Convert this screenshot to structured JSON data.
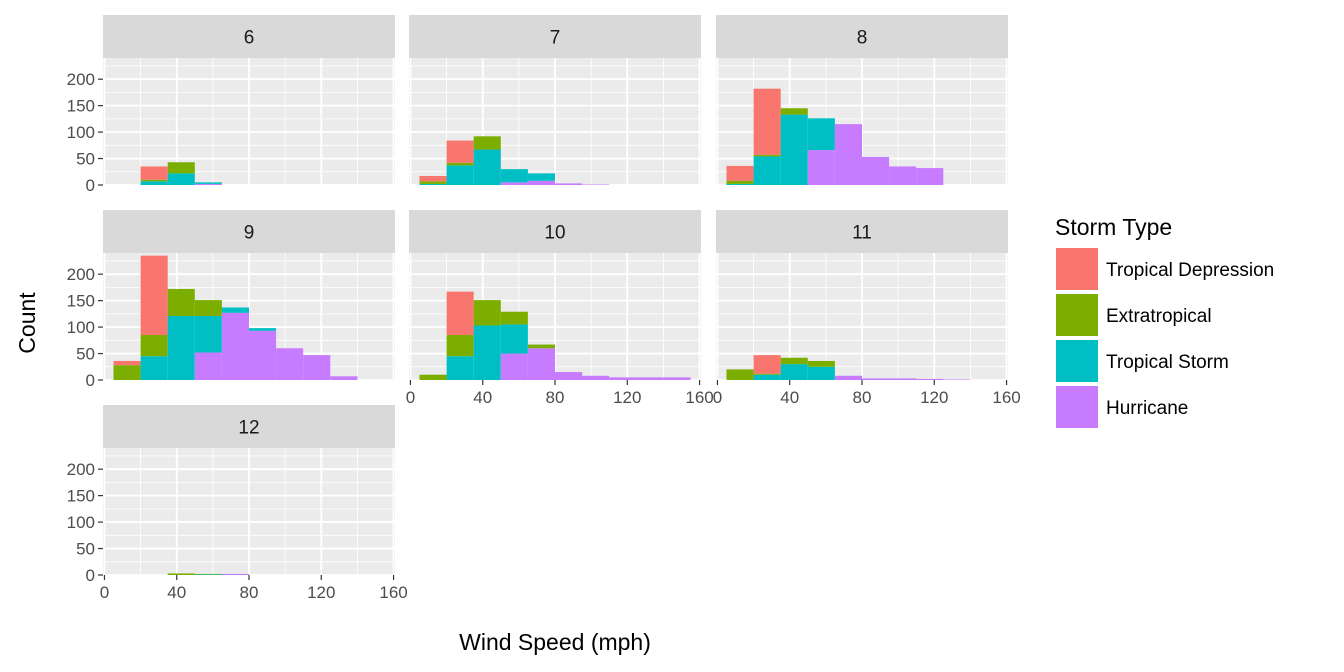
{
  "chart_data": {
    "type": "bar",
    "subtype": "faceted-stacked-histogram",
    "xlabel": "Wind Speed (mph)",
    "ylabel": "Count",
    "xlim": [
      0,
      160
    ],
    "ylim": [
      0,
      240
    ],
    "x_ticks": [
      0,
      40,
      80,
      120,
      160
    ],
    "x_tick_labels": [
      "0",
      "40",
      "80",
      "120",
      "160"
    ],
    "y_ticks": [
      0,
      50,
      100,
      150,
      200
    ],
    "y_tick_labels": [
      "0",
      "50",
      "100",
      "150",
      "200"
    ],
    "grid": true,
    "facet_grid": {
      "cols": 3,
      "rows": 3
    },
    "bins": [
      {
        "x_start": 5,
        "x_end": 20
      },
      {
        "x_start": 20,
        "x_end": 35
      },
      {
        "x_start": 35,
        "x_end": 50
      },
      {
        "x_start": 50,
        "x_end": 65
      },
      {
        "x_start": 65,
        "x_end": 80
      },
      {
        "x_start": 80,
        "x_end": 95
      },
      {
        "x_start": 95,
        "x_end": 110
      },
      {
        "x_start": 110,
        "x_end": 125
      },
      {
        "x_start": 125,
        "x_end": 140
      },
      {
        "x_start": 140,
        "x_end": 155
      }
    ],
    "legend": {
      "title": "Storm Type",
      "position": "right",
      "entries": [
        {
          "name": "Tropical Depression",
          "color": "#F8766D"
        },
        {
          "name": "Extratropical",
          "color": "#7CAE00"
        },
        {
          "name": "Tropical Storm",
          "color": "#00BFC4"
        },
        {
          "name": "Hurricane",
          "color": "#C77CFF"
        }
      ]
    },
    "facets": [
      {
        "label": "6",
        "series": [
          {
            "name": "Tropical Depression",
            "values": [
              0,
              25,
              0,
              0,
              0,
              0,
              0,
              0,
              0,
              0
            ]
          },
          {
            "name": "Extratropical",
            "values": [
              0,
              3,
              21,
              0,
              0,
              0,
              0,
              0,
              0,
              0
            ]
          },
          {
            "name": "Tropical Storm",
            "values": [
              0,
              7,
              22,
              3,
              0,
              0,
              0,
              0,
              0,
              0
            ]
          },
          {
            "name": "Hurricane",
            "values": [
              0,
              0,
              0,
              2,
              0,
              0,
              0,
              0,
              0,
              0
            ]
          }
        ]
      },
      {
        "label": "7",
        "series": [
          {
            "name": "Tropical Depression",
            "values": [
              10,
              42,
              0,
              0,
              0,
              0,
              0,
              0,
              0,
              0
            ]
          },
          {
            "name": "Extratropical",
            "values": [
              5,
              5,
              25,
              0,
              0,
              0,
              0,
              0,
              0,
              0
            ]
          },
          {
            "name": "Tropical Storm",
            "values": [
              2,
              37,
              67,
              25,
              14,
              0,
              0,
              0,
              0,
              0
            ]
          },
          {
            "name": "Hurricane",
            "values": [
              0,
              0,
              0,
              5,
              8,
              3,
              1,
              0,
              0,
              0
            ]
          }
        ]
      },
      {
        "label": "8",
        "series": [
          {
            "name": "Tropical Depression",
            "values": [
              28,
              125,
              0,
              0,
              0,
              0,
              0,
              0,
              0,
              0
            ]
          },
          {
            "name": "Extratropical",
            "values": [
              6,
              3,
              12,
              0,
              0,
              0,
              0,
              0,
              0,
              0
            ]
          },
          {
            "name": "Tropical Storm",
            "values": [
              2,
              54,
              133,
              60,
              0,
              0,
              0,
              0,
              0,
              0
            ]
          },
          {
            "name": "Hurricane",
            "values": [
              0,
              0,
              0,
              66,
              115,
              53,
              35,
              32,
              0,
              0
            ]
          }
        ]
      },
      {
        "label": "9",
        "series": [
          {
            "name": "Tropical Depression",
            "values": [
              8,
              150,
              0,
              0,
              0,
              0,
              0,
              0,
              0,
              0
            ]
          },
          {
            "name": "Extratropical",
            "values": [
              28,
              40,
              51,
              30,
              0,
              0,
              0,
              0,
              0,
              0
            ]
          },
          {
            "name": "Tropical Storm",
            "values": [
              0,
              45,
              121,
              69,
              10,
              5,
              0,
              0,
              0,
              0
            ]
          },
          {
            "name": "Hurricane",
            "values": [
              0,
              0,
              0,
              52,
              127,
              93,
              60,
              47,
              7,
              0
            ]
          }
        ]
      },
      {
        "label": "10",
        "series": [
          {
            "name": "Tropical Depression",
            "values": [
              0,
              82,
              0,
              0,
              0,
              0,
              0,
              0,
              0,
              0
            ]
          },
          {
            "name": "Extratropical",
            "values": [
              10,
              40,
              48,
              24,
              7,
              0,
              0,
              0,
              0,
              0
            ]
          },
          {
            "name": "Tropical Storm",
            "values": [
              0,
              45,
              103,
              55,
              0,
              0,
              0,
              0,
              0,
              0
            ]
          },
          {
            "name": "Hurricane",
            "values": [
              0,
              0,
              0,
              50,
              60,
              15,
              8,
              5,
              5,
              5
            ]
          }
        ]
      },
      {
        "label": "11",
        "series": [
          {
            "name": "Tropical Depression",
            "values": [
              0,
              35,
              0,
              0,
              0,
              0,
              0,
              0,
              0,
              0
            ]
          },
          {
            "name": "Extratropical",
            "values": [
              20,
              2,
              12,
              11,
              0,
              0,
              0,
              0,
              0,
              0
            ]
          },
          {
            "name": "Tropical Storm",
            "values": [
              0,
              10,
              30,
              25,
              0,
              0,
              0,
              0,
              0,
              0
            ]
          },
          {
            "name": "Hurricane",
            "values": [
              0,
              0,
              0,
              0,
              8,
              3,
              3,
              2,
              1,
              0
            ]
          }
        ]
      },
      {
        "label": "12",
        "series": [
          {
            "name": "Tropical Depression",
            "values": [
              0,
              0,
              0,
              0,
              0,
              0,
              0,
              0,
              0,
              0
            ]
          },
          {
            "name": "Extratropical",
            "values": [
              0,
              0,
              3,
              1,
              0,
              0,
              0,
              0,
              0,
              0
            ]
          },
          {
            "name": "Tropical Storm",
            "values": [
              0,
              0,
              0,
              1,
              0,
              0,
              0,
              0,
              0,
              0
            ]
          },
          {
            "name": "Hurricane",
            "values": [
              0,
              0,
              0,
              0,
              2,
              0,
              0,
              0,
              0,
              0
            ]
          }
        ]
      }
    ]
  }
}
